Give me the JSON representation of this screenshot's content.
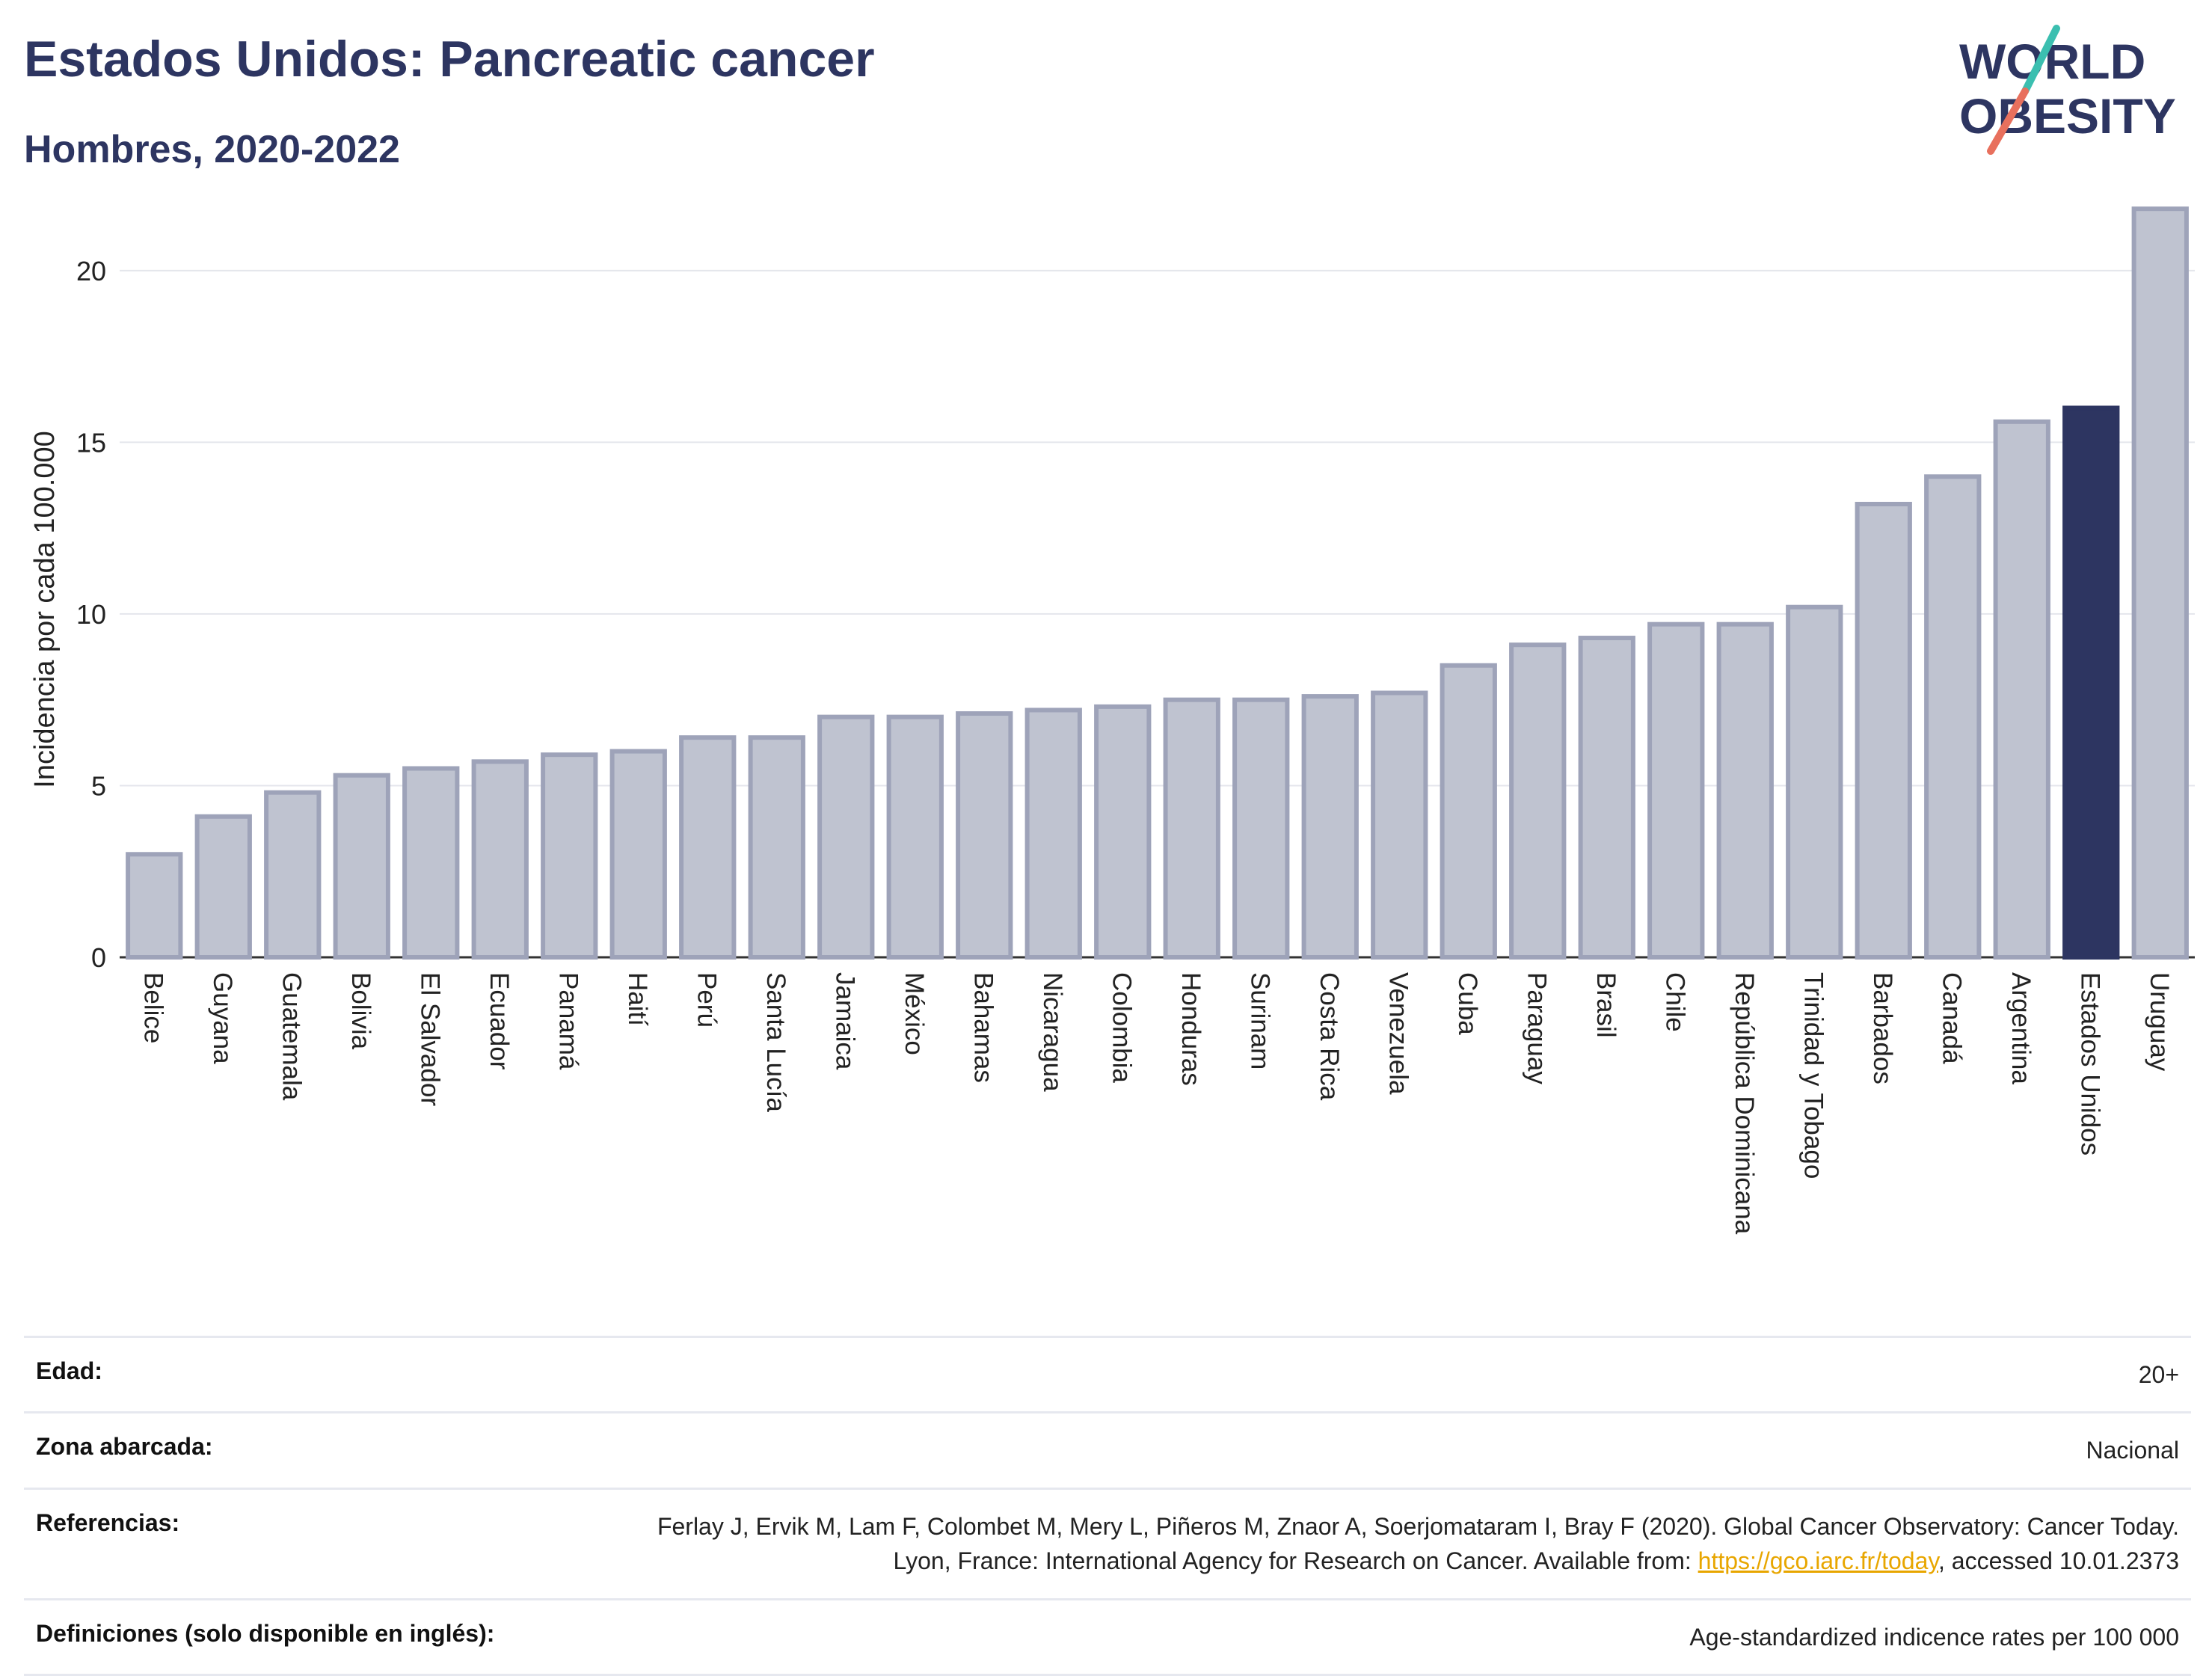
{
  "header": {
    "title": "Estados Unidos: Pancreatic cancer",
    "subtitle": "Hombres, 2020-2022",
    "logo_line1": "WORLD",
    "logo_line2": "OBESITY"
  },
  "colors": {
    "title": "#2d3561",
    "bar_default": "#bfc3d0",
    "bar_border": "#9ea3b9",
    "bar_highlight": "#2d3561",
    "logo_teal": "#3bbfb0",
    "logo_red": "#e8705d",
    "link": "#e8a600"
  },
  "chart_data": {
    "type": "bar",
    "ylabel": "Incidencia por cada 100.000",
    "ylim": [
      0,
      22
    ],
    "yticks": [
      0,
      5,
      10,
      15,
      20
    ],
    "grid": true,
    "highlight": "Estados Unidos",
    "categories": [
      "Belice",
      "Guyana",
      "Guatemala",
      "Bolivia",
      "El Salvador",
      "Ecuador",
      "Panamá",
      "Haití",
      "Perú",
      "Santa Lucía",
      "Jamaica",
      "México",
      "Bahamas",
      "Nicaragua",
      "Colombia",
      "Honduras",
      "Surinam",
      "Costa Rica",
      "Venezuela",
      "Cuba",
      "Paraguay",
      "Brasil",
      "Chile",
      "República Dominicana",
      "Trinidad y Tobago",
      "Barbados",
      "Canadá",
      "Argentina",
      "Estados Unidos",
      "Uruguay"
    ],
    "values": [
      3.0,
      4.1,
      4.8,
      5.3,
      5.5,
      5.7,
      5.9,
      6.0,
      6.4,
      6.4,
      7.0,
      7.0,
      7.1,
      7.2,
      7.3,
      7.5,
      7.5,
      7.6,
      7.7,
      8.5,
      9.1,
      9.3,
      9.7,
      9.7,
      10.2,
      13.2,
      14.0,
      15.6,
      16.0,
      21.8
    ]
  },
  "info": {
    "age_label": "Edad:",
    "age_value": "20+",
    "zone_label": "Zona abarcada:",
    "zone_value": "Nacional",
    "ref_label": "Referencias:",
    "ref_text_1": "Ferlay J, Ervik M, Lam F, Colombet M, Mery L, Piñeros M, Znaor A, Soerjomataram I, Bray F (2020). Global Cancer Observatory: Cancer Today. Lyon, France: International Agency for Research on Cancer. Available from: ",
    "ref_link": "https://gco.iarc.fr/today",
    "ref_text_2": ", accessed 10.01.2373",
    "def_label": "Definiciones (solo disponible en inglés):",
    "def_value": "Age-standardized indicence rates per 100 000"
  }
}
